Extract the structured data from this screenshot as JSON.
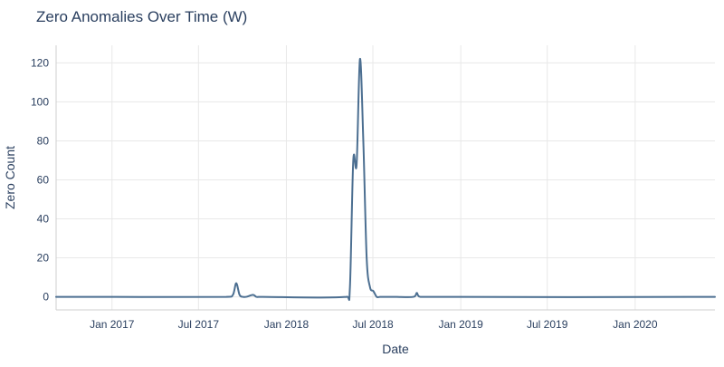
{
  "chart_data": {
    "type": "line",
    "title": "Zero Anomalies Over Time (W)",
    "xlabel": "Date",
    "ylabel": "Zero Count",
    "xlim": [
      "2016-09-06",
      "2020-06-16"
    ],
    "ylim": [
      -6.7,
      129
    ],
    "x_ticks": [
      "2017-01-01",
      "2017-07-01",
      "2018-01-01",
      "2018-07-01",
      "2019-01-01",
      "2019-07-01",
      "2020-01-01"
    ],
    "x_tick_labels": [
      "Jan 2017",
      "Jul 2017",
      "Jan 2018",
      "Jul 2018",
      "Jan 2019",
      "Jul 2019",
      "Jan 2020"
    ],
    "y_ticks": [
      0,
      20,
      40,
      60,
      80,
      100,
      120
    ],
    "y_tick_labels": [
      "0",
      "20",
      "40",
      "60",
      "80",
      "100",
      "120"
    ],
    "grid": true,
    "legend": false,
    "line_color": "#4c6f91",
    "series": [
      {
        "x": [
          "2016-09-06",
          "2017-08-28",
          "2017-09-11",
          "2017-09-18",
          "2017-09-25",
          "2017-10-02",
          "2017-10-09",
          "2017-10-23",
          "2017-10-30",
          "2017-11-06",
          "2017-11-13",
          "2018-05-07",
          "2018-05-14",
          "2018-05-21",
          "2018-05-28",
          "2018-06-04",
          "2018-06-11",
          "2018-06-18",
          "2018-06-25",
          "2018-07-02",
          "2018-07-09",
          "2018-07-16",
          "2018-07-23",
          "2018-07-30",
          "2018-08-06",
          "2018-08-13",
          "2018-08-20",
          "2018-09-24",
          "2018-10-01",
          "2018-10-08",
          "2020-06-16"
        ],
        "y": [
          0,
          0,
          1,
          7,
          1,
          0,
          0,
          1,
          0,
          0,
          0,
          0,
          5,
          70,
          68,
          122,
          80,
          20,
          5,
          3,
          0,
          0,
          0,
          0,
          0,
          0,
          0,
          0,
          2,
          0,
          0
        ]
      }
    ]
  }
}
